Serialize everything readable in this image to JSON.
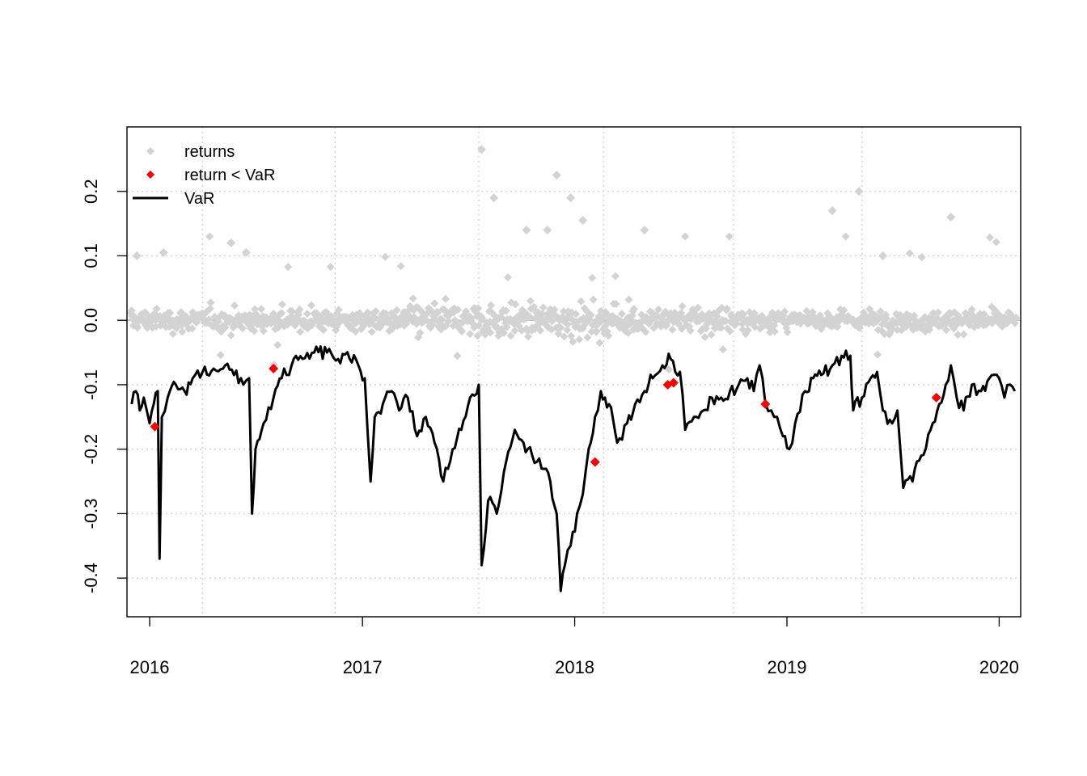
{
  "chart_data": {
    "type": "scatter",
    "title": "",
    "xlabel": "",
    "ylabel": "",
    "xlim": [
      "2015-11-23",
      "2020-02-07"
    ],
    "ylim": [
      -0.46,
      0.3
    ],
    "x_ticks": [
      "2016-01-01",
      "2017-01-01",
      "2018-01-01",
      "2019-01-01",
      "2020-01-01"
    ],
    "x_tick_labels": [
      "2016",
      "2017",
      "2018",
      "2019",
      "2020"
    ],
    "y_ticks": [
      -0.4,
      -0.3,
      -0.2,
      -0.1,
      0.0,
      0.1,
      0.2
    ],
    "y_tick_labels": [
      "-0.4",
      "-0.3",
      "-0.2",
      "-0.1",
      "0.0",
      "0.1",
      "0.2"
    ],
    "grid": true,
    "vertical_grid_dates": [
      "2016-04-01",
      "2016-11-15",
      "2017-07-20",
      "2018-02-20",
      "2018-10-01",
      "2019-05-10"
    ],
    "zero_line": true,
    "legend": {
      "position": "top-left",
      "items": [
        {
          "label": "returns",
          "marker": "diamond",
          "color": "#d3d3d3"
        },
        {
          "label": "return < VaR",
          "marker": "diamond",
          "color": "#ff0000"
        },
        {
          "label": "VaR",
          "marker": "line",
          "color": "#000000"
        }
      ]
    },
    "series": [
      {
        "name": "VaR",
        "kind": "line",
        "color": "#000000",
        "points": [
          [
            "2015-12-01",
            -0.13
          ],
          [
            "2015-12-08",
            -0.11
          ],
          [
            "2015-12-15",
            -0.14
          ],
          [
            "2015-12-22",
            -0.12
          ],
          [
            "2016-01-01",
            -0.16
          ],
          [
            "2016-01-08",
            -0.13
          ],
          [
            "2016-01-15",
            -0.11
          ],
          [
            "2016-01-18",
            -0.37
          ],
          [
            "2016-01-22",
            -0.15
          ],
          [
            "2016-02-01",
            -0.12
          ],
          [
            "2016-02-15",
            -0.1
          ],
          [
            "2016-03-01",
            -0.11
          ],
          [
            "2016-03-15",
            -0.09
          ],
          [
            "2016-04-01",
            -0.08
          ],
          [
            "2016-04-20",
            -0.075
          ],
          [
            "2016-05-10",
            -0.07
          ],
          [
            "2016-05-25",
            -0.085
          ],
          [
            "2016-06-10",
            -0.1
          ],
          [
            "2016-06-20",
            -0.09
          ],
          [
            "2016-06-25",
            -0.3
          ],
          [
            "2016-07-01",
            -0.2
          ],
          [
            "2016-07-15",
            -0.16
          ],
          [
            "2016-08-01",
            -0.12
          ],
          [
            "2016-08-15",
            -0.09
          ],
          [
            "2016-09-01",
            -0.07
          ],
          [
            "2016-09-20",
            -0.06
          ],
          [
            "2016-10-10",
            -0.05
          ],
          [
            "2016-11-01",
            -0.05
          ],
          [
            "2016-11-20",
            -0.06
          ],
          [
            "2016-12-10",
            -0.06
          ],
          [
            "2016-12-25",
            -0.07
          ],
          [
            "2017-01-05",
            -0.09
          ],
          [
            "2017-01-15",
            -0.25
          ],
          [
            "2017-01-22",
            -0.15
          ],
          [
            "2017-02-05",
            -0.13
          ],
          [
            "2017-02-20",
            -0.11
          ],
          [
            "2017-03-05",
            -0.14
          ],
          [
            "2017-03-20",
            -0.12
          ],
          [
            "2017-04-05",
            -0.18
          ],
          [
            "2017-04-20",
            -0.15
          ],
          [
            "2017-05-05",
            -0.19
          ],
          [
            "2017-05-20",
            -0.25
          ],
          [
            "2017-06-05",
            -0.2
          ],
          [
            "2017-06-20",
            -0.17
          ],
          [
            "2017-07-05",
            -0.12
          ],
          [
            "2017-07-20",
            -0.1
          ],
          [
            "2017-07-25",
            -0.38
          ],
          [
            "2017-08-05",
            -0.28
          ],
          [
            "2017-08-20",
            -0.3
          ],
          [
            "2017-09-05",
            -0.22
          ],
          [
            "2017-09-20",
            -0.17
          ],
          [
            "2017-10-05",
            -0.19
          ],
          [
            "2017-10-20",
            -0.21
          ],
          [
            "2017-11-05",
            -0.23
          ],
          [
            "2017-11-20",
            -0.25
          ],
          [
            "2017-12-01",
            -0.3
          ],
          [
            "2017-12-08",
            -0.42
          ],
          [
            "2017-12-15",
            -0.38
          ],
          [
            "2017-12-25",
            -0.35
          ],
          [
            "2018-01-05",
            -0.3
          ],
          [
            "2018-01-15",
            -0.27
          ],
          [
            "2018-01-25",
            -0.2
          ],
          [
            "2018-02-05",
            -0.15
          ],
          [
            "2018-02-15",
            -0.11
          ],
          [
            "2018-03-01",
            -0.13
          ],
          [
            "2018-03-15",
            -0.19
          ],
          [
            "2018-04-01",
            -0.16
          ],
          [
            "2018-04-15",
            -0.13
          ],
          [
            "2018-05-01",
            -0.11
          ],
          [
            "2018-05-15",
            -0.09
          ],
          [
            "2018-06-01",
            -0.07
          ],
          [
            "2018-06-15",
            -0.06
          ],
          [
            "2018-07-01",
            -0.08
          ],
          [
            "2018-07-10",
            -0.17
          ],
          [
            "2018-07-25",
            -0.15
          ],
          [
            "2018-08-10",
            -0.14
          ],
          [
            "2018-08-25",
            -0.12
          ],
          [
            "2018-09-10",
            -0.12
          ],
          [
            "2018-09-25",
            -0.11
          ],
          [
            "2018-10-10",
            -0.1
          ],
          [
            "2018-10-25",
            -0.09
          ],
          [
            "2018-11-05",
            -0.11
          ],
          [
            "2018-11-15",
            -0.07
          ],
          [
            "2018-11-25",
            -0.13
          ],
          [
            "2018-12-05",
            -0.14
          ],
          [
            "2018-12-15",
            -0.15
          ],
          [
            "2018-12-25",
            -0.18
          ],
          [
            "2019-01-05",
            -0.2
          ],
          [
            "2019-01-15",
            -0.16
          ],
          [
            "2019-02-01",
            -0.11
          ],
          [
            "2019-02-15",
            -0.09
          ],
          [
            "2019-03-01",
            -0.085
          ],
          [
            "2019-03-20",
            -0.07
          ],
          [
            "2019-04-05",
            -0.055
          ],
          [
            "2019-04-20",
            -0.055
          ],
          [
            "2019-04-25",
            -0.14
          ],
          [
            "2019-05-10",
            -0.12
          ],
          [
            "2019-05-25",
            -0.09
          ],
          [
            "2019-06-05",
            -0.08
          ],
          [
            "2019-06-15",
            -0.14
          ],
          [
            "2019-07-01",
            -0.16
          ],
          [
            "2019-07-10",
            -0.14
          ],
          [
            "2019-07-20",
            -0.26
          ],
          [
            "2019-08-05",
            -0.25
          ],
          [
            "2019-08-20",
            -0.21
          ],
          [
            "2019-09-05",
            -0.17
          ],
          [
            "2019-09-20",
            -0.13
          ],
          [
            "2019-10-01",
            -0.1
          ],
          [
            "2019-10-10",
            -0.07
          ],
          [
            "2019-10-20",
            -0.12
          ],
          [
            "2019-11-01",
            -0.14
          ],
          [
            "2019-11-15",
            -0.1
          ],
          [
            "2019-12-01",
            -0.11
          ],
          [
            "2019-12-15",
            -0.09
          ],
          [
            "2020-01-01",
            -0.09
          ],
          [
            "2020-01-10",
            -0.12
          ],
          [
            "2020-01-20",
            -0.1
          ],
          [
            "2020-01-28",
            -0.11
          ]
        ]
      },
      {
        "name": "return < VaR",
        "kind": "points",
        "color": "#ff0000",
        "points": [
          [
            "2016-01-10",
            -0.165
          ],
          [
            "2016-08-01",
            -0.075
          ],
          [
            "2018-02-05",
            -0.22
          ],
          [
            "2018-06-10",
            -0.1
          ],
          [
            "2018-06-20",
            -0.097
          ],
          [
            "2018-11-25",
            -0.13
          ],
          [
            "2019-09-15",
            -0.12
          ]
        ]
      }
    ],
    "returns_scatter": {
      "name": "returns",
      "kind": "points",
      "color": "#d3d3d3",
      "distribution": "dense daily returns centred on 0.00, mostly within ±0.10",
      "notable_points": [
        [
          "2015-12-10",
          0.1
        ],
        [
          "2016-01-25",
          0.105
        ],
        [
          "2016-05-20",
          0.12
        ],
        [
          "2016-06-15",
          0.105
        ],
        [
          "2017-07-25",
          0.265
        ],
        [
          "2017-08-15",
          0.19
        ],
        [
          "2017-10-10",
          0.14
        ],
        [
          "2017-11-15",
          0.14
        ],
        [
          "2017-12-01",
          0.225
        ],
        [
          "2017-12-25",
          0.19
        ],
        [
          "2018-01-15",
          0.155
        ],
        [
          "2018-05-01",
          0.14
        ],
        [
          "2019-03-20",
          0.17
        ],
        [
          "2019-05-05",
          0.2
        ],
        [
          "2019-06-15",
          0.1
        ],
        [
          "2019-10-10",
          0.16
        ]
      ]
    }
  }
}
